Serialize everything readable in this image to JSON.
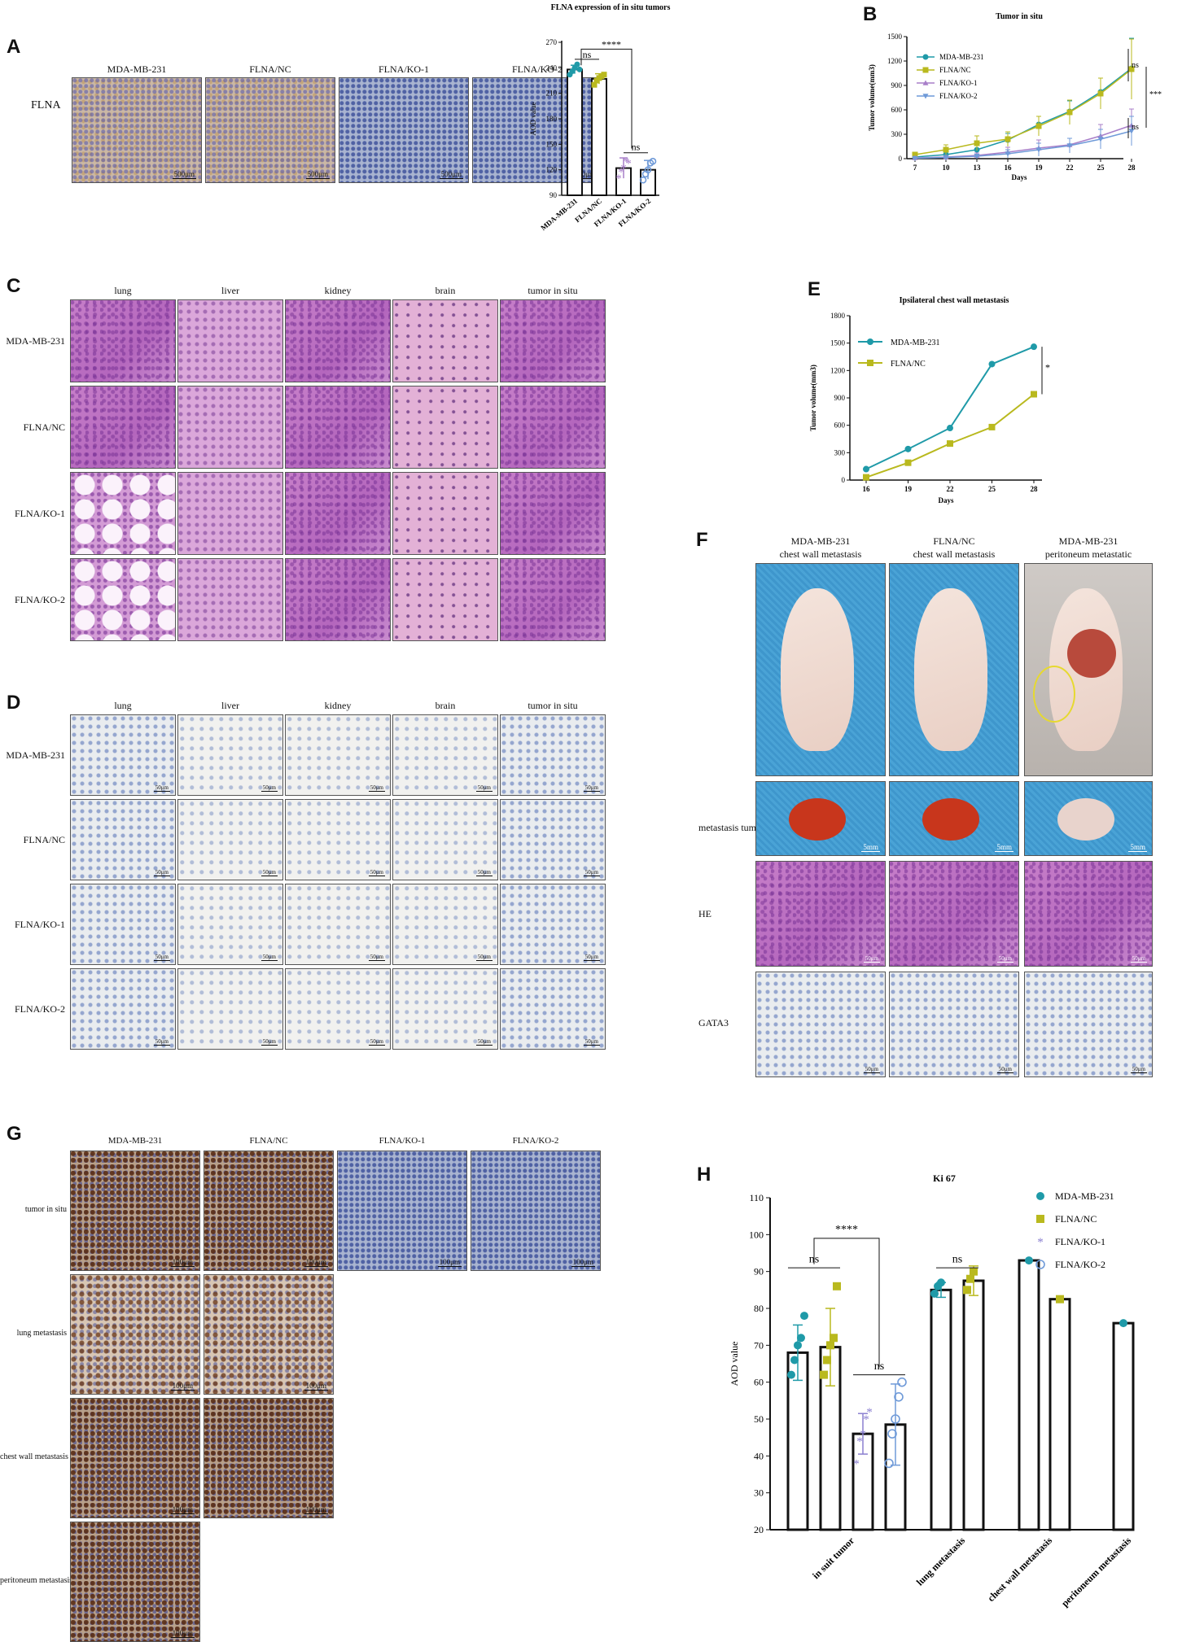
{
  "panel_letters": [
    "A",
    "B",
    "C",
    "D",
    "E",
    "F",
    "G",
    "H"
  ],
  "panelA": {
    "row_label": "FLNA",
    "columns": [
      "MDA-MB-231",
      "FLNA/NC",
      "FLNA/KO-1",
      "FLNA/KO-2"
    ],
    "scale": "500μm"
  },
  "panelC": {
    "columns": [
      "lung",
      "liver",
      "kidney",
      "brain",
      "tumor in situ"
    ],
    "rows": [
      "MDA-MB-231",
      "FLNA/NC",
      "FLNA/KO-1",
      "FLNA/KO-2"
    ]
  },
  "panelD": {
    "columns": [
      "lung",
      "liver",
      "kidney",
      "brain",
      "tumor in situ"
    ],
    "rows": [
      "MDA-MB-231",
      "FLNA/NC",
      "FLNA/KO-1",
      "FLNA/KO-2"
    ],
    "scale": "50μm"
  },
  "panelF": {
    "columns": [
      "MDA-MB-231\nchest wall metastasis",
      "FLNA/NC\nchest wall metastasis",
      "MDA-MB-231\nperitoneum metastatic"
    ],
    "rows": [
      "metastasis tumor",
      "HE",
      "GATA3"
    ],
    "scale_photo": "5mm",
    "scale_micro": "50μm"
  },
  "panelG": {
    "columns": [
      "MDA-MB-231",
      "FLNA/NC",
      "FLNA/KO-1",
      "FLNA/KO-2"
    ],
    "rows": [
      "tumor in situ",
      "lung metastasis",
      "chest wall metastasis",
      "peritoneum metastasis"
    ],
    "scale": "100μm"
  },
  "chart_data": [
    {
      "id": "A-bar",
      "type": "bar",
      "title": "FLNA expression of in situ tumors",
      "ylabel": "AOD value",
      "categories": [
        "MDA-MB-231",
        "FLNA/NC",
        "FLNA/KO-1",
        "FLNA/KO-2"
      ],
      "values": [
        238,
        227,
        122,
        120
      ],
      "errors": [
        5,
        6,
        12,
        11
      ],
      "points": [
        [
          232,
          236,
          240,
          244,
          238
        ],
        [
          220,
          225,
          228,
          230,
          232
        ],
        [
          110,
          118,
          122,
          130,
          128
        ],
        [
          108,
          115,
          120,
          128,
          130
        ]
      ],
      "colors": [
        "#1f9aa8",
        "#b9b91e",
        "#a87fc9",
        "#6f9ad8"
      ],
      "markers": [
        "circle",
        "square",
        "star",
        "ring"
      ],
      "ylim": [
        90,
        270
      ],
      "yticks": [
        90,
        120,
        150,
        180,
        210,
        240,
        270
      ],
      "annotations": [
        "ns",
        "****",
        "ns"
      ]
    },
    {
      "id": "B-line",
      "type": "line",
      "title": "Tumor in situ",
      "xlabel": "Days",
      "ylabel": "Tumor volume(mm3)",
      "x": [
        7,
        10,
        13,
        16,
        19,
        22,
        25,
        28
      ],
      "ylim": [
        0,
        1500
      ],
      "yticks": [
        0,
        300,
        600,
        900,
        1200,
        1500
      ],
      "series": [
        {
          "name": "MDA-MB-231",
          "color": "#1f9aa8",
          "values": [
            20,
            50,
            110,
            230,
            420,
            580,
            820,
            1110
          ],
          "err": [
            15,
            30,
            50,
            80,
            100,
            130,
            170,
            370
          ]
        },
        {
          "name": "FLNA/NC",
          "color": "#b9b91e",
          "values": [
            50,
            110,
            190,
            240,
            400,
            570,
            800,
            1100
          ],
          "err": [
            20,
            60,
            90,
            90,
            120,
            150,
            190,
            370
          ]
        },
        {
          "name": "FLNA/KO-1",
          "color": "#a87fc9",
          "values": [
            10,
            20,
            40,
            80,
            130,
            170,
            280,
            410
          ],
          "err": [
            10,
            20,
            30,
            60,
            100,
            80,
            140,
            200
          ]
        },
        {
          "name": "FLNA/KO-2",
          "color": "#6f9ad8",
          "values": [
            5,
            15,
            30,
            60,
            110,
            160,
            240,
            340
          ],
          "err": [
            5,
            15,
            25,
            50,
            80,
            90,
            120,
            180
          ]
        }
      ],
      "annotations": [
        "ns",
        "ns",
        "***"
      ]
    },
    {
      "id": "E-line",
      "type": "line",
      "title": "Ipsilateral chest wall metastasis",
      "xlabel": "Days",
      "ylabel": "Tumor volume(mm3)",
      "x": [
        16,
        19,
        22,
        25,
        28
      ],
      "ylim": [
        0,
        1800
      ],
      "yticks": [
        0,
        300,
        600,
        900,
        1200,
        1500,
        1800
      ],
      "series": [
        {
          "name": "MDA-MB-231",
          "color": "#1f9aa8",
          "values": [
            120,
            340,
            570,
            1270,
            1460
          ]
        },
        {
          "name": "FLNA/NC",
          "color": "#b9b91e",
          "values": [
            30,
            190,
            400,
            580,
            940
          ]
        }
      ],
      "annotations": [
        "*"
      ]
    },
    {
      "id": "H-bar",
      "type": "bar",
      "title": "Ki 67",
      "ylabel": "AOD value",
      "groups": [
        "in suit tumor",
        "lung metastasis",
        "chest wall metastasis",
        "peritoneum metastasis"
      ],
      "ylim": [
        20,
        110
      ],
      "yticks": [
        20,
        30,
        40,
        50,
        60,
        70,
        80,
        90,
        100,
        110
      ],
      "series": [
        {
          "name": "MDA-MB-231",
          "color": "#1f9aa8",
          "marker": "circle",
          "values": [
            68,
            85,
            93,
            76
          ],
          "errors": [
            7.5,
            2,
            null,
            null
          ]
        },
        {
          "name": "FLNA/NC",
          "color": "#b9b91e",
          "marker": "square",
          "values": [
            69.5,
            87.5,
            82.5,
            null
          ],
          "errors": [
            10.5,
            4,
            null,
            null
          ]
        },
        {
          "name": "FLNA/KO-1",
          "color": "#8a7fd0",
          "marker": "star",
          "values": [
            46,
            null,
            null,
            null
          ],
          "errors": [
            5.5,
            null,
            null,
            null
          ]
        },
        {
          "name": "FLNA/KO-2",
          "color": "#6f9ad8",
          "marker": "ring",
          "values": [
            48.5,
            null,
            null,
            null
          ],
          "errors": [
            11,
            null,
            null,
            null
          ]
        }
      ],
      "points": {
        "in suit tumor": [
          [
            62,
            66,
            70,
            72,
            78
          ],
          [
            62,
            66,
            70,
            72,
            86
          ],
          [
            38,
            44,
            46,
            50,
            52
          ],
          [
            38,
            46,
            50,
            56,
            60
          ]
        ],
        "lung metastasis": [
          [
            84,
            86,
            87
          ],
          [
            85,
            88,
            90
          ]
        ]
      },
      "annotations": [
        "ns",
        "****",
        "ns",
        "ns"
      ]
    }
  ]
}
